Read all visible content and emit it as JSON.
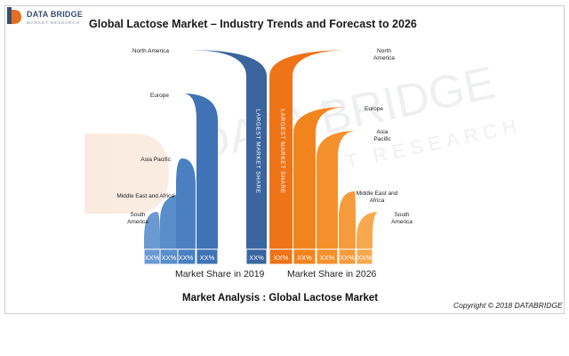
{
  "title": "Global Lactose Market – Industry Trends and Forecast to 2026",
  "logo": {
    "name": "DATA BRIDGE",
    "tagline": "MARKET RESEARCH"
  },
  "watermark": {
    "line1": "DATA BRIDGE",
    "line2": "MARKET RESEARCH"
  },
  "footer": "Market Analysis  : Global Lactose Market",
  "copyright": "Copyright © 2018 DATABRIDGE",
  "colors": {
    "left": "#3b6fb6",
    "right": "#f07a1a",
    "text": "#222222"
  },
  "chart_data": {
    "type": "bar",
    "title": "Global Lactose Market – Industry Trends and Forecast to 2026",
    "categories": [
      "North America",
      "Europe",
      "Asia Pacific",
      "Middle East and Africa",
      "South America"
    ],
    "series": [
      {
        "name": "Market Share in 2019",
        "labels": [
          "North America",
          "Europe",
          "Asia Pacific",
          "Middle East and Africa",
          "South America"
        ],
        "values": [
          "XX%",
          "XX%",
          "XX%",
          "XX%",
          "XX%"
        ],
        "callout": "LARGEST MARKET SHARE"
      },
      {
        "name": "Market Share in 2026",
        "labels": [
          "North\nAmerica",
          "Europe",
          "Asia\nPacific",
          "Middle East and\nAfrica",
          "South\nAmerica"
        ],
        "values": [
          "XX%",
          "XX%",
          "XX%",
          "XX%",
          "XX%"
        ],
        "callout": "LARGEST MARKET SHARE"
      }
    ]
  }
}
